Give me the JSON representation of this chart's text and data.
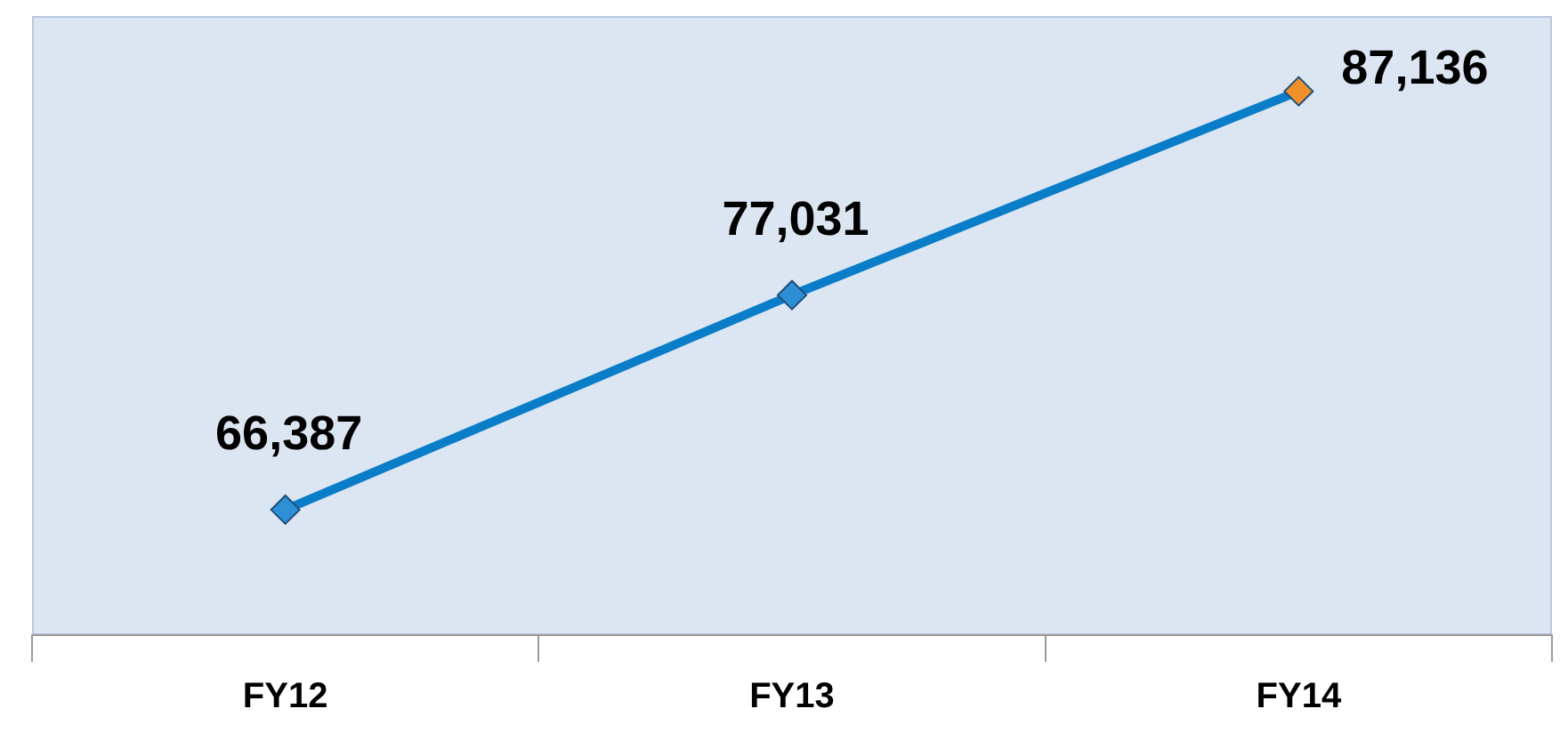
{
  "chart_data": {
    "type": "line",
    "categories": [
      "FY12",
      "FY13",
      "FY14"
    ],
    "series": [
      {
        "color": "#0a7dc8",
        "colors": [
          "#2e8fd6",
          "#2e8fd6",
          "#f0902a"
        ],
        "values": [
          66387,
          77031,
          87136
        ],
        "value_labels": [
          "66,387",
          "77,031",
          "87,136"
        ]
      }
    ],
    "marker": "diamond",
    "grid": false,
    "legend": false,
    "tick_labels": "x"
  }
}
